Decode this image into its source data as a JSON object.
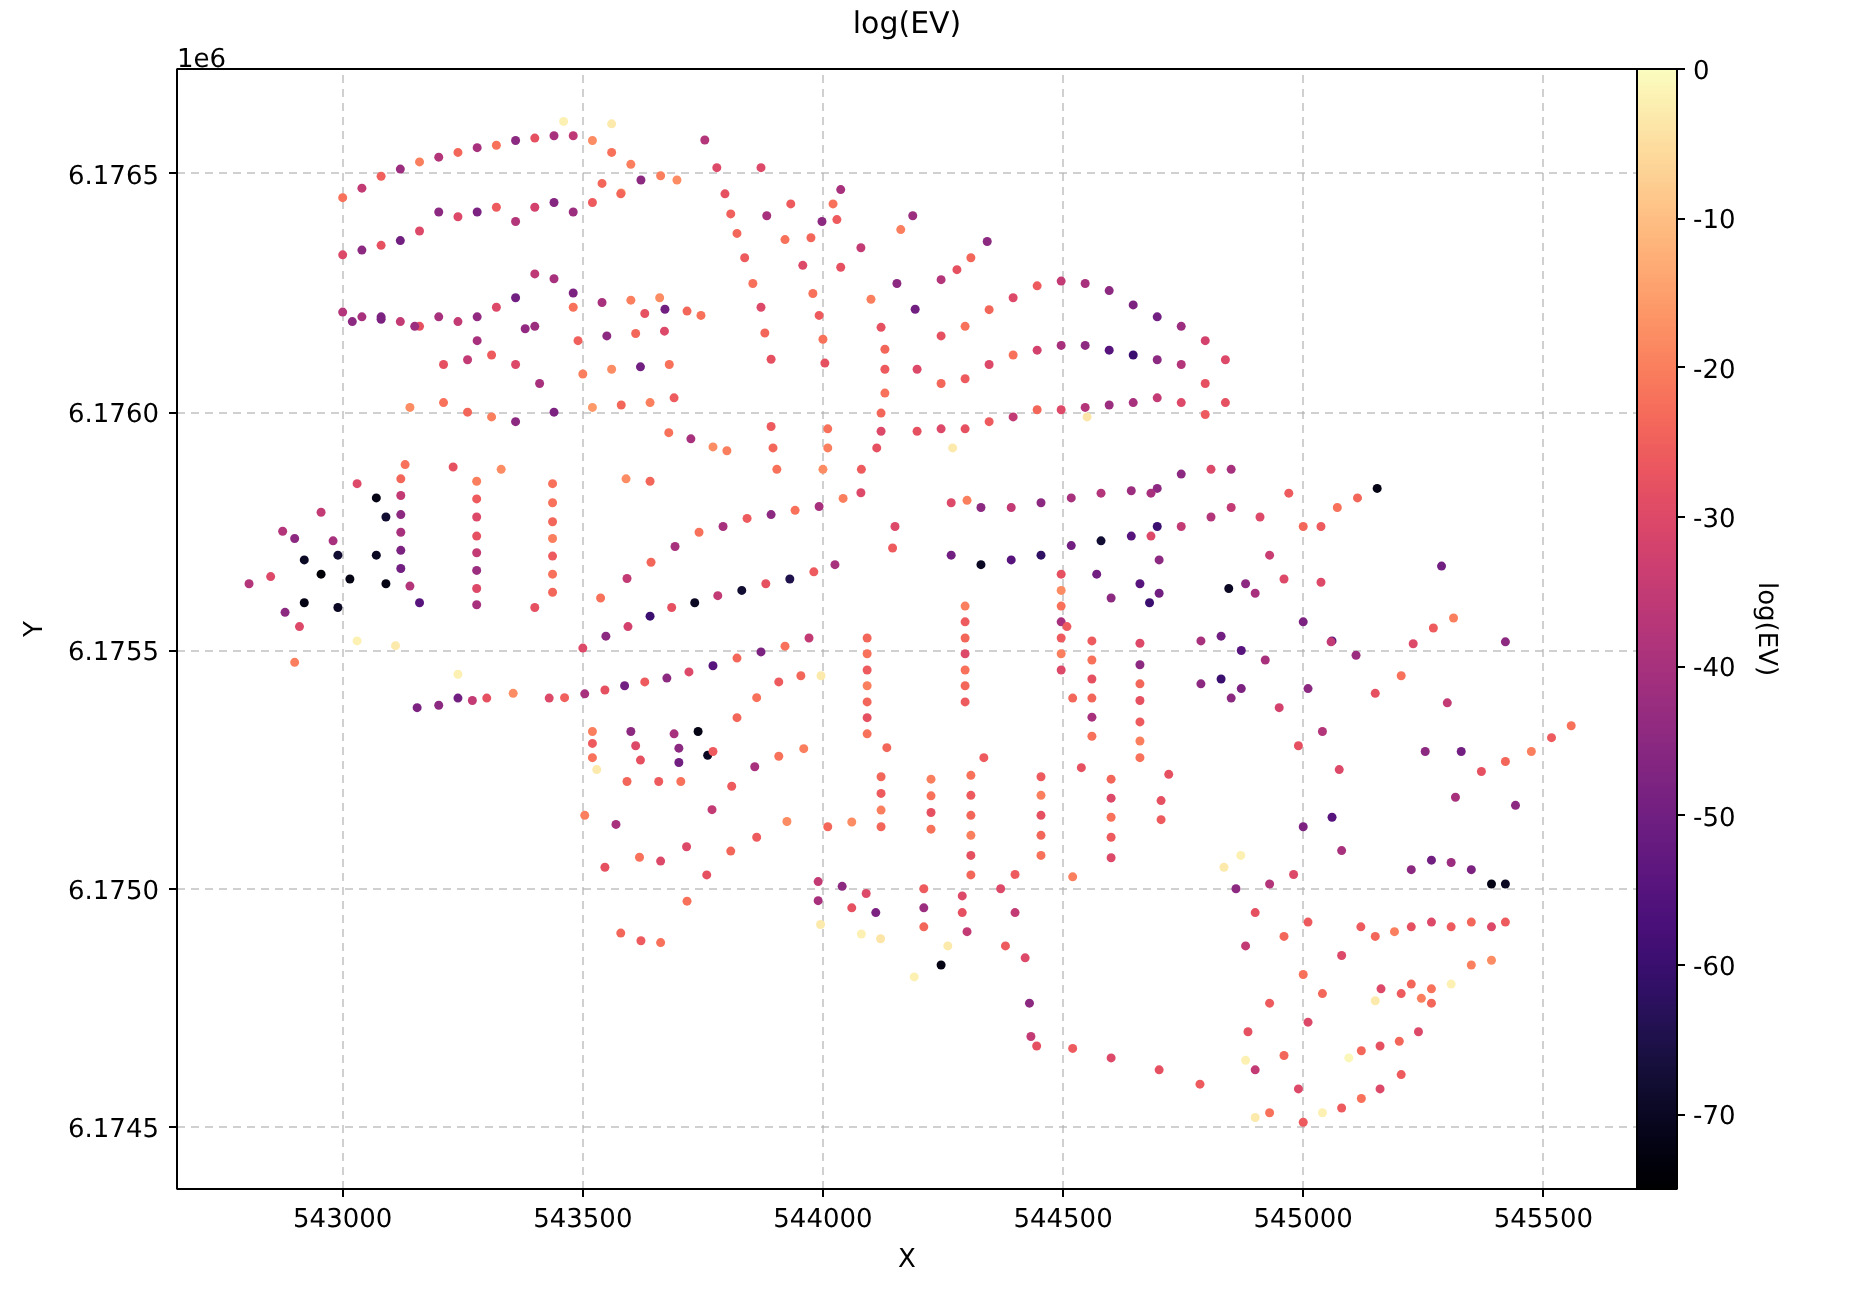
{
  "chart_data": {
    "type": "scatter",
    "title": "log(EV)",
    "xlabel": "X",
    "ylabel": "Y",
    "clabel": "log(EV)",
    "annotations": [
      "1e6"
    ],
    "xlim": [
      542655,
      545695
    ],
    "ylim": [
      6.17437,
      6.17672
    ],
    "xticks": [
      543000,
      543500,
      544000,
      544500,
      545000,
      545500
    ],
    "yticks": [
      6.1745,
      {
        "value": 6.175,
        "label": "6.1750"
      },
      6.1755,
      {
        "value": 6.176,
        "label": "6.1760"
      },
      6.1765
    ],
    "clim": [
      -75,
      0
    ],
    "cticks": [
      -70,
      -60,
      -50,
      -40,
      -30,
      -20,
      -10,
      0
    ],
    "grid": true,
    "marker": "circle",
    "x": [
      543000,
      543000,
      543000,
      543040,
      543040,
      543040,
      543080,
      543080,
      543080,
      543120,
      543120,
      543120,
      543160,
      543160,
      543160,
      543200,
      543200,
      543200,
      543240,
      543240,
      543240,
      543280,
      543280,
      543280,
      543320,
      543320,
      543320,
      543360,
      543360,
      543360,
      543400,
      543400,
      543400,
      543400,
      543440,
      543440,
      543440,
      543480,
      543480,
      543480,
      543520,
      543560,
      543600,
      543540,
      543580,
      543520,
      543460,
      543560,
      543579,
      543629,
      543679,
      543621,
      543671,
      543725,
      543662,
      543717,
      543771,
      543696,
      543746,
      543800,
      543480,
      543540,
      543600,
      543660,
      543490,
      543550,
      543610,
      543670,
      543500,
      543560,
      543620,
      543680,
      543520,
      543580,
      543640,
      543690,
      543210,
      543210,
      543260,
      543260,
      543310,
      543310,
      543360,
      543360,
      543410,
      543440,
      543020,
      543080,
      543150,
      543280,
      543380,
      543140,
      543590,
      543640,
      543754,
      543871,
      543779,
      543933,
      543796,
      543883,
      543975,
      543808,
      543921,
      544037,
      543821,
      543958,
      544100,
      543837,
      543979,
      544121,
      543854,
      543992,
      544129,
      543871,
      544000,
      544129,
      543879,
      544004,
      544129,
      543892,
      544121,
      543892,
      544010,
      544121,
      543896,
      544010,
      544112,
      543904,
      544000,
      544080,
      544037,
      544187,
      544342,
      544021,
      544162,
      544308,
      544029,
      544279,
      544079,
      544246,
      544154,
      544192,
      543998,
      544246,
      544246,
      544246,
      544296,
      544296,
      544296,
      544346,
      544346,
      544346,
      544396,
      544396,
      544396,
      544446,
      544446,
      544446,
      544496,
      544496,
      544496,
      544546,
      544546,
      544546,
      544596,
      544596,
      544596,
      544646,
      544646,
      544646,
      544696,
      544696,
      544696,
      544746,
      544746,
      544746,
      544796,
      544796,
      544796,
      544838,
      544838,
      544196,
      544196,
      544270,
      544550,
      543121,
      543279,
      543437,
      543121,
      543279,
      543437,
      543121,
      543279,
      543437,
      543121,
      543279,
      543437,
      543121,
      543279,
      543437,
      543121,
      543279,
      543437,
      543140,
      543279,
      543437,
      543160,
      543279,
      543400,
      543130,
      543230,
      543330,
      543070,
      543070,
      543090,
      543090,
      542805,
      542850,
      542875,
      542955,
      543030,
      542900,
      542980,
      542920,
      542920,
      542955,
      542990,
      542990,
      543015,
      542910,
      542900,
      543030,
      543110,
      542880,
      543462,
      543500,
      543537,
      543504,
      543548,
      543592,
      543546,
      543594,
      543642,
      543587,
      543640,
      543692,
      543629,
      543685,
      543742,
      543675,
      543733,
      543792,
      543721,
      543781,
      543842,
      543771,
      543831,
      543892,
      543821,
      543881,
      543942,
      543871,
      543931,
      543992,
      543921,
      543981,
      544042,
      543971,
      544025,
      544079,
      544150,
      544145,
      543520,
      543600,
      543690,
      543520,
      543610,
      543700,
      543520,
      543620,
      543700,
      543740,
      543760,
      543504,
      543529,
      543546,
      543569,
      543592,
      543579,
      543618,
      543658,
      543621,
      543662,
      543704,
      543662,
      543716,
      543771,
      543717,
      543769,
      543821,
      543758,
      543810,
      543862,
      543808,
      543858,
      543908,
      543862,
      543908,
      543954,
      543925,
      543960,
      543996,
      543155,
      543200,
      543240,
      543270,
      543300,
      543355,
      543240,
      543430,
      544092,
      544296,
      544496,
      544092,
      544296,
      544496,
      544092,
      544296,
      544496,
      544092,
      544296,
      544496,
      544092,
      544296,
      544496,
      544092,
      544296,
      544496,
      544092,
      544296,
      544496,
      544133,
      544335,
      544538,
      544508,
      544520,
      544121,
      544225,
      544121,
      544225,
      544121,
      544225,
      544121,
      544225,
      544308,
      544454,
      544600,
      544308,
      544454,
      544600,
      544704,
      544308,
      544454,
      544600,
      544704,
      544308,
      544454,
      544600,
      544308,
      544454,
      544600,
      544308,
      544400,
      544520,
      544010,
      544060,
      544560,
      544660,
      544560,
      544660,
      544560,
      544660,
      544560,
      544660,
      544560,
      544660,
      544560,
      544660,
      544660,
      544720,
      544570,
      544660,
      544600,
      544680,
      544267,
      544267,
      544329,
      544329,
      544392,
      544392,
      544454,
      544454,
      544517,
      544517,
      544579,
      544579,
      544642,
      544642,
      544696,
      544696,
      544300,
      543990,
      544040,
      544090,
      543990,
      544060,
      544110,
      543995,
      544080,
      544120,
      544210,
      544290,
      544210,
      544290,
      544210,
      544300,
      544260,
      544246,
      544190,
      544370,
      544380,
      544400,
      544421,
      544430,
      544433,
      544445,
      544520,
      544600,
      544700,
      544785,
      544683,
      544683,
      544746,
      544746,
      544808,
      544808,
      544850,
      544850,
      544700,
      544700,
      544787,
      544787,
      544829,
      544829,
      544850,
      544871,
      544871,
      544921,
      544950,
      544990,
      545010,
      545040,
      545075,
      545000,
      545060,
      545110,
      544910,
      544970,
      544930,
      545000,
      544900,
      544960,
      544880,
      544845,
      545154,
      545288,
      545421,
      545558,
      545113,
      545313,
      545517,
      545071,
      545271,
      545475,
      545037,
      545229,
      545421,
      545037,
      545204,
      545371,
      545058,
      545150,
      545254,
      545317,
      545329,
      545442,
      545300,
      545225,
      545225,
      545225,
      545267,
      545267,
      545267,
      545308,
      545308,
      545308,
      545350,
      545350,
      545350,
      545392,
      545392,
      545392,
      545421,
      545421,
      545150,
      545190,
      544835,
      544870,
      544860,
      544930,
      544980,
      544900,
      544960,
      544880,
      545010,
      545000,
      545040,
      545080,
      545120,
      545000,
      545060,
      545080,
      545080,
      545121,
      545162,
      545121,
      545160,
      545204,
      545160,
      545200,
      545246,
      545204,
      545240,
      545267,
      545040,
      545095,
      545150,
      544885,
      544930,
      544960,
      544990,
      544930,
      545000,
      544900,
      544880,
      544900,
      545010
    ],
    "values": [
      6.17645,
      6.17633,
      6.17621,
      6.17647,
      6.17634,
      6.1762,
      6.176495,
      6.17635,
      6.1762,
      6.17651,
      6.17636,
      6.17619,
      6.176525,
      6.17638,
      6.17618,
      6.176535,
      6.17642,
      6.1762,
      6.176545,
      6.17641,
      6.17619,
      6.176555,
      6.17642,
      6.1762,
      6.17656,
      6.17643,
      6.17622,
      6.17657,
      6.1764,
      6.17624,
      6.176575,
      6.17643,
      6.17629,
      6.17618,
      6.17658,
      6.17644,
      6.17628,
      6.17658,
      6.17642,
      6.17625,
      6.17657,
      6.176545,
      6.17652,
      6.17648,
      6.17646,
      6.17644,
      6.17661,
      6.176605,
      6.176458,
      6.176207,
      6.175957,
      6.176487,
      6.176216,
      6.175944,
      6.176496,
      6.176212,
      6.175927,
      6.176487,
      6.176203,
      6.175919,
      6.17622,
      6.17623,
      6.176235,
      6.17624,
      6.17615,
      6.17616,
      6.176165,
      6.17617,
      6.17608,
      6.17609,
      6.176095,
      6.1761,
      6.17601,
      6.176015,
      6.17602,
      6.17603,
      6.1761,
      6.17602,
      6.17611,
      6.176,
      6.17612,
      6.17599,
      6.1761,
      6.17598,
      6.17606,
      6.176,
      6.17619,
      6.176195,
      6.17618,
      6.17615,
      6.176175,
      6.17601,
      6.17586,
      6.175855,
      6.176571,
      6.176513,
      6.176513,
      6.176437,
      6.176458,
      6.176412,
      6.176366,
      6.176416,
      6.176362,
      6.176304,
      6.176375,
      6.176308,
      6.176237,
      6.176324,
      6.176249,
      6.176178,
      6.17627,
      6.176203,
      6.176132,
      6.17622,
      6.176153,
      6.17609,
      6.176166,
      6.176103,
      6.17604,
      6.176111,
      6.175998,
      6.17597,
      6.175965,
      6.17596,
      6.175925,
      6.175925,
      6.175925,
      6.17588,
      6.17588,
      6.17588,
      6.176467,
      6.176412,
      6.176358,
      6.176437,
      6.176383,
      6.176324,
      6.176404,
      6.176299,
      6.176345,
      6.176278,
      6.17627,
      6.176216,
      6.1764,
      6.17616,
      6.17606,
      6.175965,
      6.17618,
      6.17607,
      6.175965,
      6.176215,
      6.1761,
      6.17598,
      6.17624,
      6.17612,
      6.17599,
      6.176265,
      6.17613,
      6.176005,
      6.176275,
      6.17614,
      6.176005,
      6.17627,
      6.17614,
      6.17601,
      6.176255,
      6.17613,
      6.176015,
      6.176225,
      6.17612,
      6.17602,
      6.1762,
      6.17611,
      6.17603,
      6.17618,
      6.1761,
      6.17602,
      6.17615,
      6.17606,
      6.175995,
      6.17611,
      6.17602,
      6.17609,
      6.17596,
      6.175925,
      6.17599,
      6.17586,
      6.175855,
      6.17585,
      6.175825,
      6.175818,
      6.17581,
      6.175785,
      6.17578,
      6.17577,
      6.175748,
      6.17574,
      6.175735,
      6.17571,
      6.175705,
      6.175698,
      6.175672,
      6.175668,
      6.17566,
      6.175635,
      6.17563,
      6.175622,
      6.1756,
      6.175596,
      6.17559,
      6.17589,
      6.175885,
      6.17588,
      6.17582,
      6.1757,
      6.17578,
      6.17564,
      6.17564,
      6.175655,
      6.17575,
      6.17579,
      6.17585,
      6.175735,
      6.17573,
      6.17569,
      6.1756,
      6.17566,
      6.1757,
      6.17559,
      6.17565,
      6.17555,
      6.175475,
      6.17552,
      6.17551,
      6.17558,
      6.175401,
      6.175505,
      6.17561,
      6.175409,
      6.17553,
      6.175651,
      6.175417,
      6.17555,
      6.175685,
      6.175426,
      6.175572,
      6.175718,
      6.175434,
      6.17559,
      6.175748,
      6.175442,
      6.1756,
      6.17576,
      6.175455,
      6.175615,
      6.175777,
      6.175468,
      6.175626,
      6.175785,
      6.175484,
      6.17564,
      6.175794,
      6.175497,
      6.17565,
      6.175802,
      6.175509,
      6.175665,
      6.175819,
      6.175526,
      6.17568,
      6.175831,
      6.17576,
      6.175715,
      6.17533,
      6.17533,
      6.175325,
      6.175305,
      6.1753,
      6.175295,
      6.175275,
      6.17527,
      6.175265,
      6.17533,
      6.17528,
      6.175154,
      6.17525,
      6.175045,
      6.175135,
      6.175225,
      6.174907,
      6.175066,
      6.175225,
      6.174891,
      6.175058,
      6.175225,
      6.174887,
      6.175088,
      6.175288,
      6.174974,
      6.175166,
      6.175359,
      6.175029,
      6.175215,
      6.175401,
      6.175079,
      6.175256,
      6.175434,
      6.175108,
      6.175278,
      6.175447,
      6.175141,
      6.175294,
      6.175447,
      6.17538,
      6.175385,
      6.1754,
      6.175395,
      6.1754,
      6.17541,
      6.17545,
      6.1754,
      6.175526,
      6.175593,
      6.17566,
      6.175493,
      6.17556,
      6.175626,
      6.175459,
      6.175526,
      6.175593,
      6.175426,
      6.175493,
      6.17556,
      6.175392,
      6.175459,
      6.175526,
      6.175359,
      6.175426,
      6.175493,
      6.175325,
      6.175392,
      6.175459,
      6.175296,
      6.175275,
      6.175254,
      6.17555,
      6.1754,
      6.175235,
      6.17523,
      6.1752,
      6.175195,
      6.175165,
      6.17516,
      6.17513,
      6.175125,
      6.175238,
      6.175235,
      6.17523,
      6.175196,
      6.175196,
      6.17519,
      6.175185,
      6.175154,
      6.175154,
      6.17515,
      6.175145,
      6.175112,
      6.175112,
      6.175108,
      6.17507,
      6.17507,
      6.175065,
      6.175029,
      6.17503,
      6.175025,
      6.17513,
      6.17514,
      6.17552,
      6.175515,
      6.17548,
      6.17547,
      6.17544,
      6.17543,
      6.1754,
      6.175395,
      6.17536,
      6.17535,
      6.17532,
      6.17531,
      6.175275,
      6.17524,
      6.17566,
      6.17564,
      6.17561,
      6.1756,
      6.17581,
      6.1757,
      6.1758,
      6.17568,
      6.1758,
      6.17569,
      6.17581,
      6.1757,
      6.17582,
      6.17572,
      6.17583,
      6.17573,
      6.175835,
      6.17574,
      6.17584,
      6.17576,
      6.175815,
      6.175015,
      6.175005,
      6.17499,
      6.174975,
      6.17496,
      6.17495,
      6.174925,
      6.174905,
      6.174895,
      6.175,
      6.174985,
      6.17496,
      6.17495,
      6.17492,
      6.17491,
      6.17488,
      6.17484,
      6.174815,
      6.175,
      6.17488,
      6.17495,
      6.174855,
      6.17476,
      6.17469,
      6.17467,
      6.174665,
      6.174645,
      6.17462,
      6.17459,
      6.17583,
      6.17574,
      6.17587,
      6.17576,
      6.17588,
      6.17578,
      6.17588,
      6.1758,
      6.17569,
      6.17562,
      6.17552,
      6.17543,
      6.17553,
      6.17544,
      6.1754,
      6.1755,
      6.17542,
      6.17548,
      6.17538,
      6.1753,
      6.17542,
      6.17533,
      6.17525,
      6.17556,
      6.17552,
      6.17549,
      6.17578,
      6.17583,
      6.1757,
      6.17576,
      6.17562,
      6.17565,
      6.17564,
      6.17563,
      6.17584,
      6.175677,
      6.175518,
      6.175342,
      6.17582,
      6.175568,
      6.175317,
      6.1758,
      6.175547,
      6.175288,
      6.17576,
      6.175514,
      6.175267,
      6.175643,
      6.175447,
      6.175246,
      6.175518,
      6.17541,
      6.175288,
      6.175192,
      6.175288,
      6.175175,
      6.17539,
      6.17504,
      6.17492,
      6.1748,
      6.17506,
      6.17493,
      6.17479,
      6.175055,
      6.17492,
      6.1748,
      6.17504,
      6.17493,
      6.17484,
      6.17501,
      6.17492,
      6.17485,
      6.17501,
      6.17493,
      6.1749,
      6.17491,
      6.175045,
      6.17507,
      6.175,
      6.17501,
      6.17503,
      6.17495,
      6.1749,
      6.17488,
      6.17493,
      6.17482,
      6.17478,
      6.17486,
      6.17492,
      6.17513,
      6.17515,
      6.17508,
      6.17454,
      6.17466,
      6.17479,
      6.17456,
      6.17467,
      6.17478,
      6.17458,
      6.17468,
      6.17477,
      6.17461,
      6.1747,
      6.17476,
      6.17453,
      6.174645,
      6.174765,
      6.1747,
      6.17476,
      6.17465,
      6.17458,
      6.17453,
      6.17451,
      6.17462,
      6.17464,
      6.17452,
      6.17472
    ],
    "cvalues": [
      -22,
      -30,
      -38,
      -35,
      -45,
      -40,
      -25,
      -28,
      -48,
      -42,
      -50,
      -35,
      -20,
      -30,
      -28,
      -38,
      -45,
      -40,
      -24,
      -30,
      -35,
      -40,
      -48,
      -44,
      -22,
      -26,
      -30,
      -45,
      -38,
      -50,
      -28,
      -32,
      -36,
      -42,
      -40,
      -46,
      -40,
      -36,
      -42,
      -48,
      -18,
      -22,
      -20,
      -24,
      -16,
      -26,
      -2,
      -3,
      -24,
      -28,
      -22,
      -45,
      -50,
      -40,
      -20,
      -24,
      -18,
      -18,
      -22,
      -20,
      -22,
      -40,
      -20,
      -18,
      -25,
      -45,
      -24,
      -30,
      -20,
      -18,
      -50,
      -22,
      -16,
      -24,
      -20,
      -26,
      -28,
      -22,
      -35,
      -24,
      -26,
      -20,
      -30,
      -45,
      -40,
      -48,
      -45,
      -48,
      -42,
      -40,
      -44,
      -18,
      -18,
      -24,
      -38,
      -30,
      -30,
      -26,
      -28,
      -40,
      -24,
      -25,
      -22,
      -28,
      -24,
      -30,
      -20,
      -26,
      -22,
      -28,
      -22,
      -26,
      -24,
      -30,
      -22,
      -26,
      -24,
      -28,
      -22,
      -28,
      -24,
      -26,
      -22,
      -30,
      -24,
      -20,
      -28,
      -22,
      -18,
      -26,
      -40,
      -42,
      -45,
      -22,
      -20,
      -24,
      -26,
      -28,
      -35,
      -38,
      -45,
      -50,
      -45,
      -28,
      -24,
      -30,
      -22,
      -26,
      -28,
      -24,
      -30,
      -26,
      -30,
      -22,
      -35,
      -26,
      -32,
      -24,
      -35,
      -40,
      -30,
      -40,
      -45,
      -38,
      -45,
      -55,
      -42,
      -48,
      -60,
      -40,
      -50,
      -45,
      -35,
      -42,
      -38,
      -30,
      -32,
      -28,
      -26,
      -30,
      -28,
      -30,
      -28,
      -3,
      -4,
      -24,
      -20,
      -22,
      -35,
      -26,
      -22,
      -45,
      -30,
      -24,
      -40,
      -28,
      -20,
      -48,
      -35,
      -26,
      -50,
      -42,
      -22,
      -38,
      -30,
      -24,
      -55,
      -40,
      -28,
      -22,
      -28,
      -18,
      -72,
      -70,
      -68,
      -72,
      -38,
      -30,
      -38,
      -35,
      -30,
      -45,
      -40,
      -70,
      -72,
      -74,
      -68,
      -70,
      -72,
      -30,
      -20,
      -2,
      -3,
      -45,
      -25,
      -30,
      -22,
      -40,
      -45,
      -35,
      -28,
      -32,
      -24,
      -50,
      -60,
      -40,
      -26,
      -28,
      -22,
      -45,
      -70,
      -40,
      -30,
      -35,
      -26,
      -55,
      -68,
      -45,
      -24,
      -28,
      -22,
      -48,
      -65,
      -40,
      -22,
      -26,
      -20,
      -35,
      -40,
      -30,
      -30,
      -26,
      -20,
      -45,
      -40,
      -26,
      -30,
      -45,
      -22,
      -28,
      -50,
      -72,
      -70,
      -20,
      -3,
      -28,
      -40,
      -24,
      -24,
      -22,
      -26,
      -26,
      -30,
      -22,
      -22,
      -30,
      -26,
      -22,
      -35,
      -24,
      -28,
      -26,
      -22,
      -24,
      -40,
      -26,
      -26,
      -22,
      -24,
      -18,
      -20,
      -3,
      -48,
      -45,
      -50,
      -35,
      -28,
      -18,
      -2,
      -30,
      -24,
      -20,
      -28,
      -22,
      -26,
      -18,
      -26,
      -24,
      -22,
      -20,
      -30,
      -40,
      -24,
      -22,
      -26,
      -28,
      -24,
      -20,
      -22,
      -26,
      -30,
      -24,
      -26,
      -28,
      -26,
      -24,
      -24,
      -20,
      -26,
      -22,
      -20,
      -28,
      -24,
      -22,
      -22,
      -26,
      -24,
      -26,
      -20,
      -30,
      -28,
      -24,
      -28,
      -22,
      -26,
      -20,
      -24,
      -26,
      -28,
      -22,
      -30,
      -24,
      -26,
      -20,
      -24,
      -18,
      -26,
      -30,
      -22,
      -45,
      -28,
      -24,
      -24,
      -28,
      -40,
      -26,
      -22,
      -20,
      -22,
      -28,
      -50,
      -55,
      -45,
      -60,
      -30,
      -50,
      -45,
      -70,
      -35,
      -55,
      -45,
      -62,
      -40,
      -50,
      -38,
      -68,
      -42,
      -55,
      -45,
      -60,
      -20,
      -35,
      -45,
      -30,
      -40,
      -28,
      -48,
      -3,
      -2,
      -4,
      -26,
      -30,
      -42,
      -28,
      -24,
      -35,
      -3,
      -72,
      -2,
      -30,
      -26,
      -35,
      -30,
      -45,
      -35,
      -28,
      -26,
      -30,
      -28,
      -26,
      -40,
      -30,
      -45,
      -35,
      -30,
      -38,
      -40,
      -35,
      -45,
      -50,
      -40,
      -45,
      -50,
      -60,
      -45,
      -55,
      -48,
      -40,
      -32,
      -28,
      -45,
      -38,
      -30,
      -48,
      -55,
      -42,
      -30,
      -26,
      -34,
      -24,
      -40,
      -30,
      -45,
      -70,
      -72,
      -50,
      -45,
      -22,
      -24,
      -20,
      -26,
      -22,
      -26,
      -20,
      -26,
      -30,
      -24,
      -30,
      -22,
      -28,
      -35,
      -28,
      -45,
      -40,
      -50,
      -45,
      -35,
      -45,
      -28,
      -24,
      -50,
      -30,
      -22,
      -42,
      -26,
      -2,
      -48,
      -24,
      -20,
      -72,
      -30,
      -18,
      -70,
      -26,
      -24,
      -20,
      -3,
      -2,
      -45,
      -38,
      -30,
      -28,
      -24,
      -35,
      -26,
      -22,
      -24,
      -30,
      -26,
      -48,
      -55,
      -40,
      -26,
      -24,
      -30,
      -22,
      -28,
      -26,
      -30,
      -24,
      -20,
      -26,
      -30,
      -24,
      -2,
      -1,
      -3,
      -28,
      -26,
      -24,
      -30,
      -22,
      -26,
      -35,
      -2,
      -3,
      -30
    ]
  }
}
